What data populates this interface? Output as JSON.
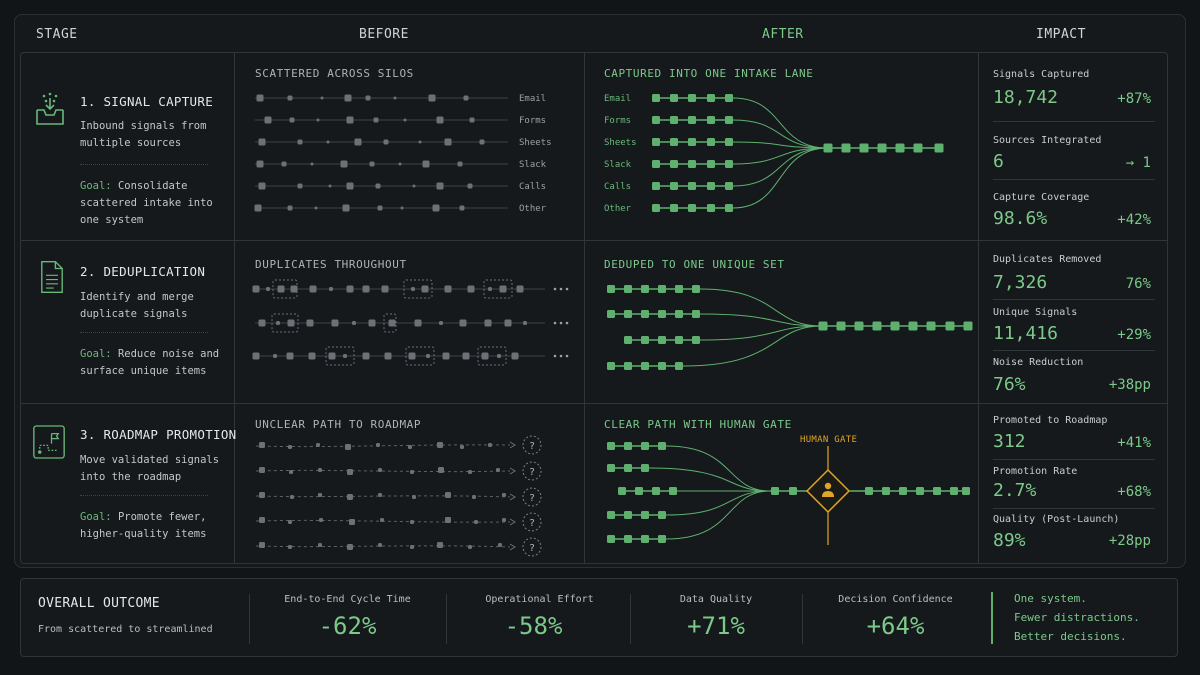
{
  "header": {
    "stage": "STAGE",
    "before": "BEFORE",
    "after": "AFTER",
    "impact": "IMPACT"
  },
  "stages": [
    {
      "title": "1. SIGNAL CAPTURE",
      "desc": "Inbound signals from multiple sources",
      "goal_prefix": "Goal:",
      "goal_text": "Consolidate scattered intake into one system",
      "icon": "inbox-signals-icon",
      "before_title": "SCATTERED ACROSS SILOS",
      "after_title": "CAPTURED INTO ONE INTAKE LANE",
      "sources": [
        "Email",
        "Forms",
        "Sheets",
        "Slack",
        "Calls",
        "Other"
      ],
      "metrics": [
        {
          "label": "Signals Captured",
          "value": "18,742",
          "change": "+87%"
        },
        {
          "label": "Sources Integrated",
          "value": "6",
          "change": "→ 1"
        },
        {
          "label": "Capture Coverage",
          "value": "98.6%",
          "change": "+42%"
        }
      ]
    },
    {
      "title": "2. DEDUPLICATION",
      "desc": "Identify and merge duplicate signals",
      "goal_prefix": "Goal:",
      "goal_text": "Reduce noise and surface unique items",
      "icon": "document-list-icon",
      "before_title": "DUPLICATES THROUGHOUT",
      "after_title": "DEDUPED TO ONE UNIQUE SET",
      "metrics": [
        {
          "label": "Duplicates Removed",
          "value": "7,326",
          "change": "76%"
        },
        {
          "label": "Unique Signals",
          "value": "11,416",
          "change": "+29%"
        },
        {
          "label": "Noise Reduction",
          "value": "76%",
          "change": "+38pp"
        }
      ]
    },
    {
      "title": "3. ROADMAP PROMOTION",
      "desc": "Move validated signals into the roadmap",
      "goal_prefix": "Goal:",
      "goal_text": "Promote fewer, higher-quality items",
      "icon": "roadmap-flag-icon",
      "before_title": "UNCLEAR PATH TO ROADMAP",
      "after_title": "CLEAR PATH WITH HUMAN GATE",
      "gate_label": "HUMAN GATE",
      "unknown_glyph": "?",
      "metrics": [
        {
          "label": "Promoted to Roadmap",
          "value": "312",
          "change": "+41%"
        },
        {
          "label": "Promotion Rate",
          "value": "2.7%",
          "change": "+68%"
        },
        {
          "label": "Quality (Post-Launch)",
          "value": "89%",
          "change": "+28pp"
        }
      ]
    }
  ],
  "outcome": {
    "title": "OVERALL OUTCOME",
    "subtitle": "From scattered to streamlined",
    "metrics": [
      {
        "label": "End-to-End Cycle Time",
        "value": "-62%"
      },
      {
        "label": "Operational Effort",
        "value": "-58%"
      },
      {
        "label": "Data Quality",
        "value": "+71%"
      },
      {
        "label": "Decision Confidence",
        "value": "+64%"
      }
    ],
    "tagline": [
      "One system.",
      "Fewer distractions.",
      "Better decisions."
    ]
  },
  "colors": {
    "green": "#5fb06f",
    "grey": "#6b7177",
    "amber": "#e0a526"
  }
}
